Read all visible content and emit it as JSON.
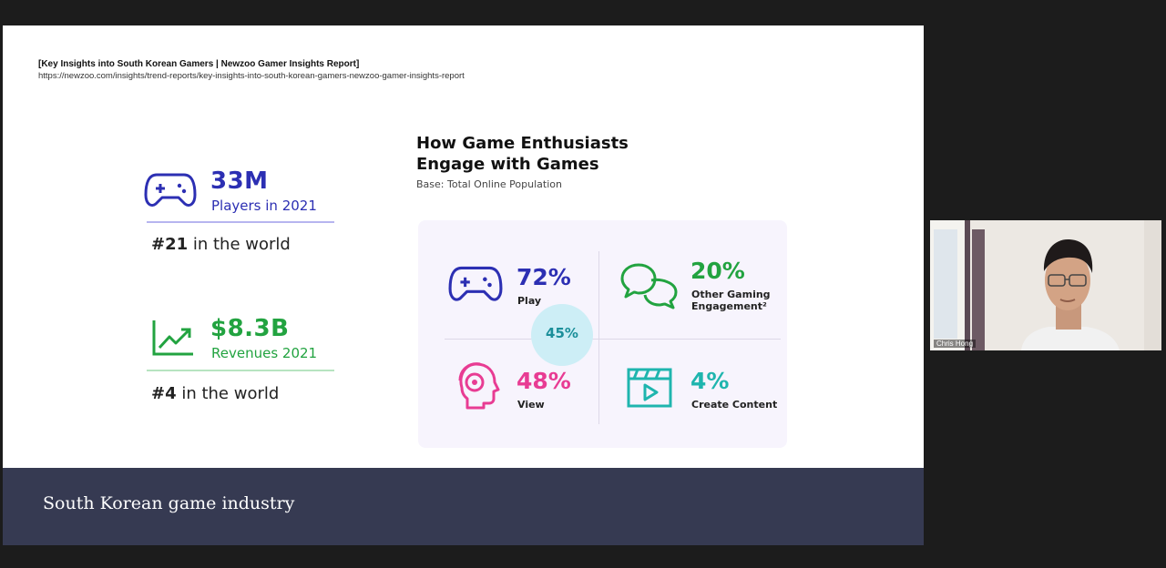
{
  "source": {
    "title": "[Key Insights into South Korean Gamers | Newzoo Gamer Insights Report]",
    "url": "https://newzoo.com/insights/trend-reports/key-insights-into-south-korean-gamers-newzoo-gamer-insights-report"
  },
  "kpis": {
    "players": {
      "value": "33M",
      "label": "Players in 2021",
      "rank_num": "#21",
      "rank_text": " in the world",
      "color": "#2c2fb3",
      "line_color": "#b7b5ef"
    },
    "revenues": {
      "value": "$8.3B",
      "label": "Revenues 2021",
      "rank_num": "#4",
      "rank_text": " in the world",
      "color": "#22a340",
      "line_color": "#b7e4c0"
    }
  },
  "chart": {
    "title_line1": "How Game Enthusiasts",
    "title_line2": "Engage with Games",
    "base": "Base: Total Online Population",
    "center": "45%"
  },
  "chart_data": {
    "type": "table",
    "title": "How Game Enthusiasts Engage with Games",
    "subtitle": "Base: Total Online Population",
    "categories": [
      "Play",
      "Other Gaming Engagement²",
      "View",
      "Create Content"
    ],
    "values": [
      72,
      20,
      48,
      4
    ],
    "overlap": 45
  },
  "quadrants": [
    {
      "pct": "72%",
      "line1": "Play",
      "line2": "",
      "color": "#2c2fb3",
      "icon": "gamepad-icon"
    },
    {
      "pct": "20%",
      "line1": "Other Gaming",
      "line2": "Engagement²",
      "color": "#22a340",
      "icon": "chat-bubbles-icon"
    },
    {
      "pct": "48%",
      "line1": "View",
      "line2": "",
      "color": "#e83c93",
      "icon": "head-headset-icon"
    },
    {
      "pct": "4%",
      "line1": "Create Content",
      "line2": "",
      "color": "#1fb5ae",
      "icon": "video-clapper-icon"
    }
  ],
  "footer": {
    "text": "South Korean game industry",
    "bg": "#363a52"
  },
  "webcam": {
    "name": "Chris Hong"
  }
}
